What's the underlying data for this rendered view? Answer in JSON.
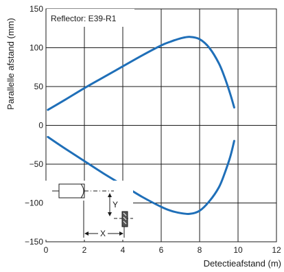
{
  "chart_data": {
    "type": "line",
    "annotation": "Reflector: E39-R1",
    "xlabel": "Detectieafstand (m)",
    "ylabel": "Parallelle afstand (mm)",
    "xlim": [
      0,
      12
    ],
    "ylim": [
      -150,
      150
    ],
    "x_ticks": [
      0,
      2,
      4,
      6,
      8,
      10,
      12
    ],
    "y_ticks": [
      -150,
      -100,
      -50,
      0,
      50,
      100,
      150
    ],
    "grid": true,
    "line_color": "#1f6fb8",
    "series": [
      {
        "values": [
          {
            "x": 0.1,
            "y": 20
          },
          {
            "x": 1.0,
            "y": 33
          },
          {
            "x": 2.0,
            "y": 48
          },
          {
            "x": 3.0,
            "y": 62
          },
          {
            "x": 4.0,
            "y": 76
          },
          {
            "x": 5.0,
            "y": 90
          },
          {
            "x": 6.0,
            "y": 103
          },
          {
            "x": 6.5,
            "y": 108
          },
          {
            "x": 7.0,
            "y": 112
          },
          {
            "x": 7.5,
            "y": 114
          },
          {
            "x": 8.0,
            "y": 111
          },
          {
            "x": 8.5,
            "y": 100
          },
          {
            "x": 9.0,
            "y": 80
          },
          {
            "x": 9.3,
            "y": 62
          },
          {
            "x": 9.6,
            "y": 40
          },
          {
            "x": 9.8,
            "y": 23
          }
        ]
      },
      {
        "values": [
          {
            "x": 0.1,
            "y": -15
          },
          {
            "x": 1.0,
            "y": -30
          },
          {
            "x": 2.0,
            "y": -46
          },
          {
            "x": 3.0,
            "y": -62
          },
          {
            "x": 4.0,
            "y": -77
          },
          {
            "x": 5.0,
            "y": -92
          },
          {
            "x": 6.0,
            "y": -105
          },
          {
            "x": 6.5,
            "y": -110
          },
          {
            "x": 7.0,
            "y": -113
          },
          {
            "x": 7.5,
            "y": -114
          },
          {
            "x": 8.0,
            "y": -110
          },
          {
            "x": 8.5,
            "y": -98
          },
          {
            "x": 9.0,
            "y": -80
          },
          {
            "x": 9.3,
            "y": -62
          },
          {
            "x": 9.6,
            "y": -40
          },
          {
            "x": 9.8,
            "y": -20
          }
        ]
      }
    ],
    "inset": {
      "x_label": "X",
      "y_label": "Y"
    }
  }
}
